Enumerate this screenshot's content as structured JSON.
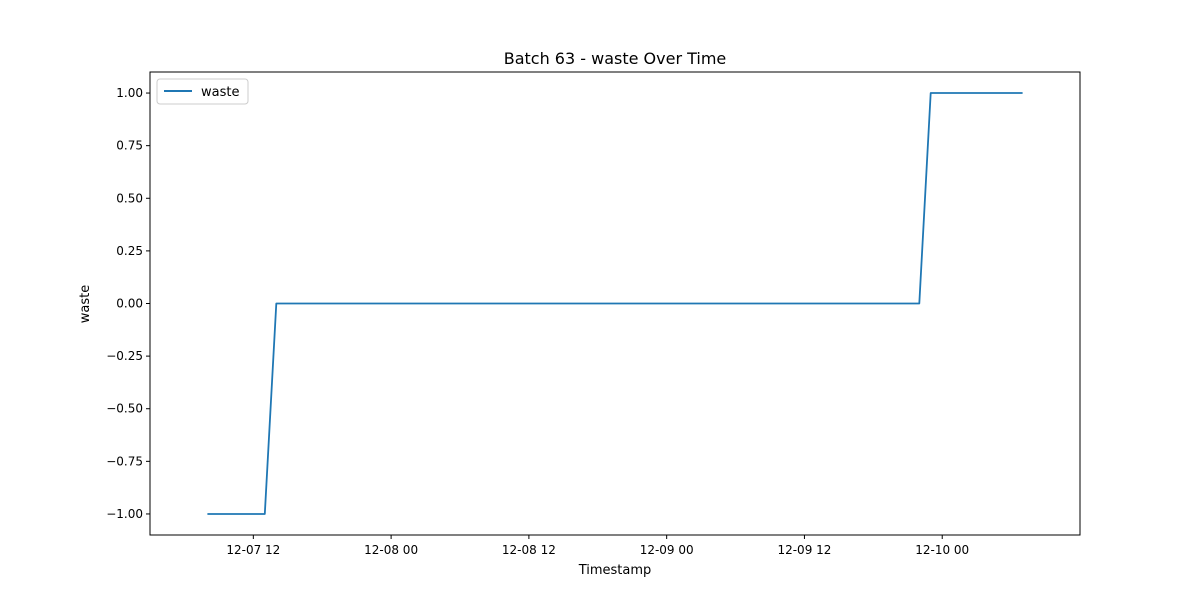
{
  "chart_data": {
    "type": "line",
    "title": "Batch 63 - waste Over Time",
    "xlabel": "Timestamp",
    "ylabel": "waste",
    "x_tick_labels": [
      "12-07 12",
      "12-08 00",
      "12-08 12",
      "12-09 00",
      "12-09 12",
      "12-10 00"
    ],
    "x_ticks": [
      "2024-12-07 12:00",
      "2024-12-08 00:00",
      "2024-12-08 12:00",
      "2024-12-09 00:00",
      "2024-12-09 12:00",
      "2024-12-10 00:00"
    ],
    "xlim": [
      "2024-12-07 03:00",
      "2024-12-10 12:00"
    ],
    "y_tick_labels": [
      "−1.00",
      "−0.75",
      "−0.50",
      "−0.25",
      "0.00",
      "0.25",
      "0.50",
      "0.75",
      "1.00"
    ],
    "y_ticks": [
      -1.0,
      -0.75,
      -0.5,
      -0.25,
      0.0,
      0.25,
      0.5,
      0.75,
      1.0
    ],
    "ylim": [
      -1.1,
      1.1
    ],
    "grid": false,
    "legend_position": "top-left",
    "series": [
      {
        "name": "waste",
        "color": "#1f77b4",
        "x": [
          "2024-12-07 08:00",
          "2024-12-07 13:00",
          "2024-12-07 14:00",
          "2024-12-09 22:00",
          "2024-12-09 23:00",
          "2024-12-10 07:00"
        ],
        "y": [
          -1,
          -1,
          0,
          0,
          1,
          1
        ]
      }
    ]
  }
}
